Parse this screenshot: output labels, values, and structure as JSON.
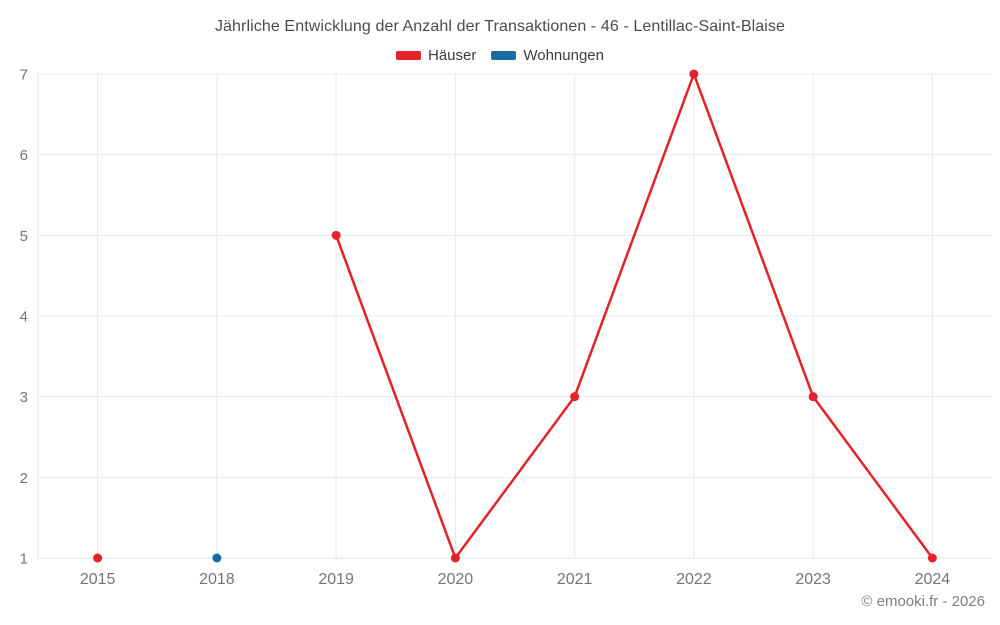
{
  "header": {
    "title": "Jährliche Entwicklung der Anzahl der Transaktionen - 46 - Lentillac-Saint-Blaise"
  },
  "legend": {
    "items": [
      {
        "label": "Häuser",
        "color": "#e1232a"
      },
      {
        "label": "Wohnungen",
        "color": "#1a6aa3"
      }
    ]
  },
  "footer": {
    "credit": "© emooki.fr - 2026"
  },
  "chart_data": {
    "type": "line",
    "title": "Jährliche Entwicklung der Anzahl der Transaktionen - 46 - Lentillac-Saint-Blaise",
    "categories": [
      "2015",
      "2018",
      "2019",
      "2020",
      "2021",
      "2022",
      "2023",
      "2024"
    ],
    "series": [
      {
        "name": "Häuser",
        "color": "#e1232a",
        "values": [
          1,
          null,
          5,
          1,
          3,
          7,
          3,
          1
        ]
      },
      {
        "name": "Wohnungen",
        "color": "#1a6aa3",
        "values": [
          null,
          1,
          null,
          null,
          null,
          null,
          null,
          null
        ]
      }
    ],
    "xlabel": "",
    "ylabel": "",
    "ylim": [
      1,
      7
    ],
    "yticks": [
      1,
      2,
      3,
      4,
      5,
      6,
      7
    ],
    "grid": true,
    "legend_position": "top",
    "colors": {
      "grid_line": "#e9e9e9",
      "axis_line": "#e0e0e0",
      "tick_label": "#757575"
    }
  }
}
